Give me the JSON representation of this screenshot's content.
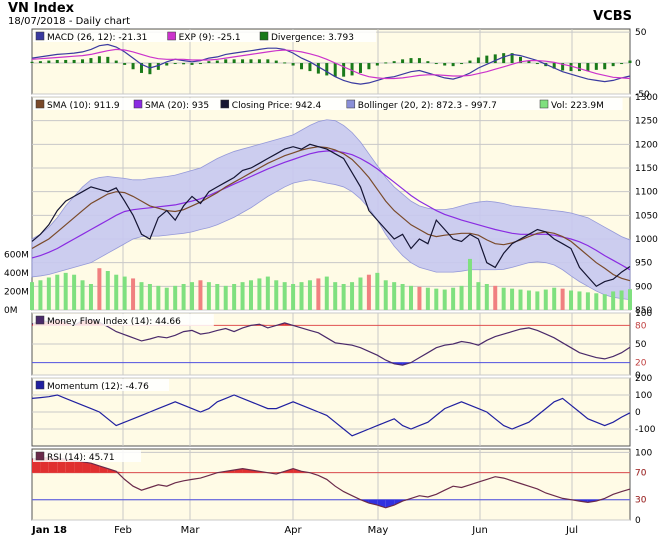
{
  "header": {
    "title": "VN Index",
    "subtitle": "18/07/2018 - Daily chart",
    "source": "VCBS"
  },
  "colors": {
    "panel_bg": "#fffbe6",
    "grid": "#c8c8c8",
    "macd": "#3a3aa0",
    "exp": "#cc33cc",
    "divergence": "#1a7a1a",
    "sma10": "#7a4a2a",
    "sma20": "#8a2be2",
    "close": "#141432",
    "bollinger_fill": "#c7c9f0",
    "bollinger_line": "#8a8fd8",
    "vol_up": "#7fe07f",
    "vol_down": "#f08080",
    "mfi": "#4a2a6a",
    "momentum": "#2020a0",
    "rsi": "#6a2a4a",
    "overbought_fill": "#e03030",
    "oversold_fill": "#3030e0"
  },
  "chart_data": [
    {
      "type": "line",
      "panel": "macd",
      "legend": [
        {
          "label": "MACD (26, 12): -21.31",
          "color": "#3a3aa0"
        },
        {
          "label": "EXP (9): -25.1",
          "color": "#cc33cc"
        },
        {
          "label": "Divergence: 3.793",
          "color": "#1a7a1a"
        }
      ],
      "ylim": [
        -50,
        55
      ],
      "yticks": [
        50,
        0,
        -50
      ],
      "series": [
        {
          "name": "MACD (26, 12)",
          "values": [
            8,
            10,
            12,
            14,
            15,
            16,
            18,
            22,
            28,
            30,
            26,
            18,
            8,
            -2,
            -8,
            -4,
            2,
            6,
            4,
            2,
            4,
            8,
            10,
            14,
            16,
            18,
            20,
            22,
            24,
            24,
            22,
            16,
            8,
            2,
            -6,
            -14,
            -22,
            -28,
            -32,
            -34,
            -32,
            -28,
            -24,
            -22,
            -18,
            -14,
            -12,
            -16,
            -20,
            -24,
            -26,
            -22,
            -16,
            -8,
            -2,
            4,
            10,
            14,
            12,
            8,
            4,
            -2,
            -8,
            -14,
            -18,
            -22,
            -26,
            -28,
            -30,
            -28,
            -24,
            -21
          ]
        },
        {
          "name": "EXP (9)",
          "values": [
            6,
            7,
            8,
            9,
            10,
            11,
            12,
            14,
            17,
            20,
            22,
            21,
            18,
            14,
            10,
            7,
            6,
            6,
            6,
            5,
            5,
            5,
            6,
            8,
            10,
            12,
            14,
            16,
            18,
            20,
            21,
            20,
            18,
            15,
            11,
            6,
            0,
            -6,
            -12,
            -18,
            -22,
            -24,
            -25,
            -25,
            -24,
            -22,
            -20,
            -19,
            -19,
            -20,
            -21,
            -21,
            -20,
            -17,
            -14,
            -10,
            -6,
            -2,
            2,
            4,
            4,
            3,
            1,
            -2,
            -5,
            -9,
            -13,
            -17,
            -20,
            -23,
            -24,
            -25
          ]
        }
      ]
    },
    {
      "type": "line",
      "panel": "price",
      "legend": [
        {
          "label": "SMA (10): 911.9",
          "color": "#7a4a2a"
        },
        {
          "label": "SMA (20): 935",
          "color": "#8a2be2"
        },
        {
          "label": "Closing Price: 942.4",
          "color": "#141432"
        },
        {
          "label": "Bollinger (20, 2): 872.3 - 997.7",
          "color": "#8a8fd8"
        },
        {
          "label": "Vol: 223.9M",
          "color": "#7fe07f"
        }
      ],
      "ylim": [
        850,
        1300
      ],
      "yticks": [
        1300,
        1250,
        1200,
        1150,
        1100,
        1050,
        1000,
        950,
        900,
        850
      ],
      "vol_ticks": [
        "600M",
        "400M",
        "200M",
        "0M"
      ],
      "vol_max": 700,
      "x_labels": [
        "Jan 18",
        "Feb",
        "Mar",
        "Apr",
        "May",
        "Jun",
        "Jul"
      ],
      "close": [
        995,
        1010,
        1030,
        1060,
        1080,
        1090,
        1100,
        1110,
        1105,
        1100,
        1108,
        1080,
        1050,
        1010,
        1000,
        1045,
        1060,
        1040,
        1070,
        1090,
        1075,
        1100,
        1110,
        1120,
        1130,
        1145,
        1150,
        1160,
        1170,
        1180,
        1190,
        1195,
        1190,
        1200,
        1195,
        1190,
        1180,
        1170,
        1140,
        1110,
        1060,
        1040,
        1020,
        1000,
        1010,
        980,
        1000,
        990,
        1040,
        1020,
        1000,
        995,
        1010,
        1000,
        950,
        940,
        970,
        990,
        1000,
        1010,
        1020,
        1015,
        1000,
        990,
        980,
        940,
        920,
        900,
        910,
        915,
        930,
        942
      ],
      "series": [
        {
          "name": "SMA (10)",
          "values": [
            980,
            990,
            1000,
            1015,
            1030,
            1045,
            1060,
            1075,
            1085,
            1095,
            1100,
            1098,
            1090,
            1080,
            1070,
            1065,
            1060,
            1058,
            1062,
            1070,
            1078,
            1088,
            1098,
            1110,
            1120,
            1130,
            1140,
            1150,
            1160,
            1168,
            1176,
            1182,
            1188,
            1192,
            1195,
            1193,
            1188,
            1180,
            1168,
            1150,
            1130,
            1105,
            1080,
            1060,
            1045,
            1030,
            1020,
            1010,
            1005,
            1008,
            1010,
            1012,
            1012,
            1008,
            998,
            990,
            988,
            992,
            998,
            1005,
            1012,
            1015,
            1012,
            1005,
            995,
            980,
            965,
            950,
            938,
            925,
            917,
            912
          ]
        },
        {
          "name": "SMA (20)",
          "values": [
            960,
            965,
            972,
            980,
            990,
            1000,
            1010,
            1020,
            1030,
            1040,
            1050,
            1058,
            1062,
            1064,
            1066,
            1068,
            1070,
            1072,
            1076,
            1080,
            1085,
            1092,
            1100,
            1108,
            1116,
            1124,
            1132,
            1140,
            1148,
            1155,
            1162,
            1168,
            1174,
            1180,
            1184,
            1186,
            1186,
            1183,
            1178,
            1170,
            1160,
            1148,
            1134,
            1120,
            1106,
            1092,
            1080,
            1070,
            1060,
            1052,
            1046,
            1040,
            1035,
            1030,
            1025,
            1020,
            1016,
            1012,
            1010,
            1010,
            1010,
            1010,
            1008,
            1004,
            1000,
            994,
            986,
            976,
            965,
            955,
            945,
            935
          ]
        }
      ],
      "bollinger_upper": [
        1000,
        1010,
        1025,
        1045,
        1070,
        1090,
        1110,
        1125,
        1130,
        1132,
        1130,
        1128,
        1125,
        1125,
        1128,
        1130,
        1132,
        1135,
        1140,
        1145,
        1150,
        1160,
        1170,
        1178,
        1185,
        1190,
        1195,
        1200,
        1205,
        1210,
        1215,
        1220,
        1230,
        1240,
        1248,
        1252,
        1250,
        1240,
        1225,
        1205,
        1180,
        1155,
        1130,
        1110,
        1095,
        1080,
        1070,
        1065,
        1062,
        1062,
        1065,
        1070,
        1075,
        1078,
        1080,
        1078,
        1075,
        1070,
        1068,
        1066,
        1064,
        1062,
        1060,
        1058,
        1055,
        1050,
        1045,
        1035,
        1025,
        1015,
        1005,
        998
      ],
      "bollinger_lower": [
        920,
        922,
        925,
        930,
        935,
        940,
        945,
        950,
        960,
        970,
        980,
        990,
        1000,
        1005,
        1006,
        1006,
        1008,
        1010,
        1012,
        1015,
        1020,
        1024,
        1030,
        1038,
        1046,
        1056,
        1066,
        1078,
        1090,
        1100,
        1110,
        1118,
        1122,
        1125,
        1122,
        1118,
        1115,
        1110,
        1100,
        1085,
        1065,
        1040,
        1010,
        985,
        965,
        950,
        940,
        935,
        930,
        930,
        930,
        932,
        935,
        935,
        935,
        935,
        936,
        940,
        945,
        950,
        952,
        950,
        945,
        935,
        922,
        910,
        900,
        890,
        882,
        877,
        874,
        872
      ],
      "volume": [
        300,
        320,
        350,
        380,
        400,
        380,
        320,
        280,
        450,
        420,
        380,
        360,
        340,
        300,
        280,
        260,
        240,
        260,
        280,
        300,
        320,
        300,
        280,
        260,
        280,
        300,
        320,
        340,
        360,
        320,
        300,
        280,
        300,
        320,
        340,
        360,
        300,
        280,
        300,
        350,
        380,
        400,
        320,
        300,
        280,
        260,
        250,
        240,
        230,
        220,
        240,
        260,
        550,
        300,
        280,
        260,
        240,
        230,
        220,
        210,
        200,
        220,
        240,
        230,
        210,
        200,
        190,
        180,
        170,
        200,
        210,
        224
      ],
      "vol_down_idx": [
        8,
        12,
        20,
        34,
        40,
        46,
        55,
        63
      ]
    },
    {
      "type": "line",
      "panel": "mfi",
      "legend": [
        {
          "label": "Money Flow Index (14): 44.66",
          "color": "#4a2a6a"
        }
      ],
      "ylim": [
        0,
        100
      ],
      "yticks": [
        100,
        50,
        0
      ],
      "levels": [
        80,
        20
      ],
      "values": [
        82,
        88,
        86,
        90,
        85,
        80,
        88,
        90,
        85,
        78,
        70,
        65,
        60,
        55,
        58,
        62,
        60,
        64,
        70,
        72,
        66,
        68,
        72,
        75,
        70,
        76,
        80,
        82,
        76,
        80,
        84,
        80,
        76,
        72,
        68,
        60,
        52,
        50,
        48,
        44,
        38,
        32,
        24,
        18,
        16,
        20,
        28,
        36,
        44,
        48,
        50,
        54,
        52,
        48,
        56,
        62,
        66,
        70,
        74,
        76,
        72,
        66,
        60,
        52,
        44,
        36,
        32,
        28,
        26,
        30,
        36,
        44.66
      ]
    },
    {
      "type": "line",
      "panel": "momentum",
      "legend": [
        {
          "label": "Momentum (12): -4.76",
          "color": "#2020a0"
        }
      ],
      "ylim": [
        -200,
        200
      ],
      "yticks": [
        200,
        100,
        0,
        -100
      ],
      "values": [
        80,
        85,
        90,
        100,
        80,
        60,
        40,
        20,
        0,
        -40,
        -80,
        -60,
        -40,
        -20,
        0,
        20,
        40,
        60,
        40,
        20,
        0,
        20,
        60,
        80,
        100,
        80,
        60,
        40,
        20,
        20,
        40,
        60,
        40,
        20,
        0,
        -20,
        -60,
        -100,
        -140,
        -120,
        -100,
        -80,
        -60,
        -40,
        -80,
        -100,
        -80,
        -60,
        -20,
        20,
        40,
        60,
        40,
        20,
        0,
        -40,
        -80,
        -100,
        -80,
        -60,
        -20,
        20,
        60,
        80,
        40,
        0,
        -40,
        -60,
        -80,
        -60,
        -30,
        -4.76
      ]
    },
    {
      "type": "line",
      "panel": "rsi",
      "legend": [
        {
          "label": "RSI (14): 45.71",
          "color": "#6a2a4a"
        }
      ],
      "ylim": [
        0,
        105
      ],
      "yticks": [
        100,
        70,
        30,
        0
      ],
      "levels": [
        70,
        30
      ],
      "values": [
        90,
        92,
        92,
        91,
        90,
        88,
        86,
        84,
        80,
        76,
        72,
        60,
        50,
        44,
        48,
        52,
        50,
        55,
        58,
        60,
        62,
        66,
        70,
        72,
        74,
        76,
        74,
        72,
        70,
        68,
        72,
        76,
        72,
        70,
        66,
        60,
        50,
        42,
        36,
        30,
        25,
        22,
        18,
        22,
        28,
        32,
        36,
        34,
        38,
        44,
        50,
        48,
        52,
        56,
        60,
        64,
        62,
        58,
        54,
        50,
        46,
        40,
        36,
        32,
        30,
        28,
        26,
        28,
        32,
        38,
        42,
        45.71
      ]
    }
  ]
}
